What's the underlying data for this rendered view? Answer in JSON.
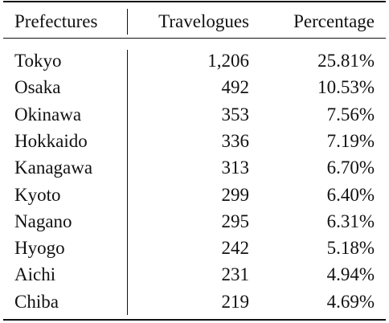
{
  "table": {
    "header": [
      "Prefectures",
      "Travelogues",
      "Percentage"
    ],
    "rows": [
      [
        "Tokyo",
        "1,206",
        "25.81%"
      ],
      [
        "Osaka",
        "492",
        "10.53%"
      ],
      [
        "Okinawa",
        "353",
        "7.56%"
      ],
      [
        "Hokkaido",
        "336",
        "7.19%"
      ],
      [
        "Kanagawa",
        "313",
        "6.70%"
      ],
      [
        "Kyoto",
        "299",
        "6.40%"
      ],
      [
        "Nagano",
        "295",
        "6.31%"
      ],
      [
        "Hyogo",
        "242",
        "5.18%"
      ],
      [
        "Aichi",
        "231",
        "4.94%"
      ],
      [
        "Chiba",
        "219",
        "4.69%"
      ]
    ]
  }
}
